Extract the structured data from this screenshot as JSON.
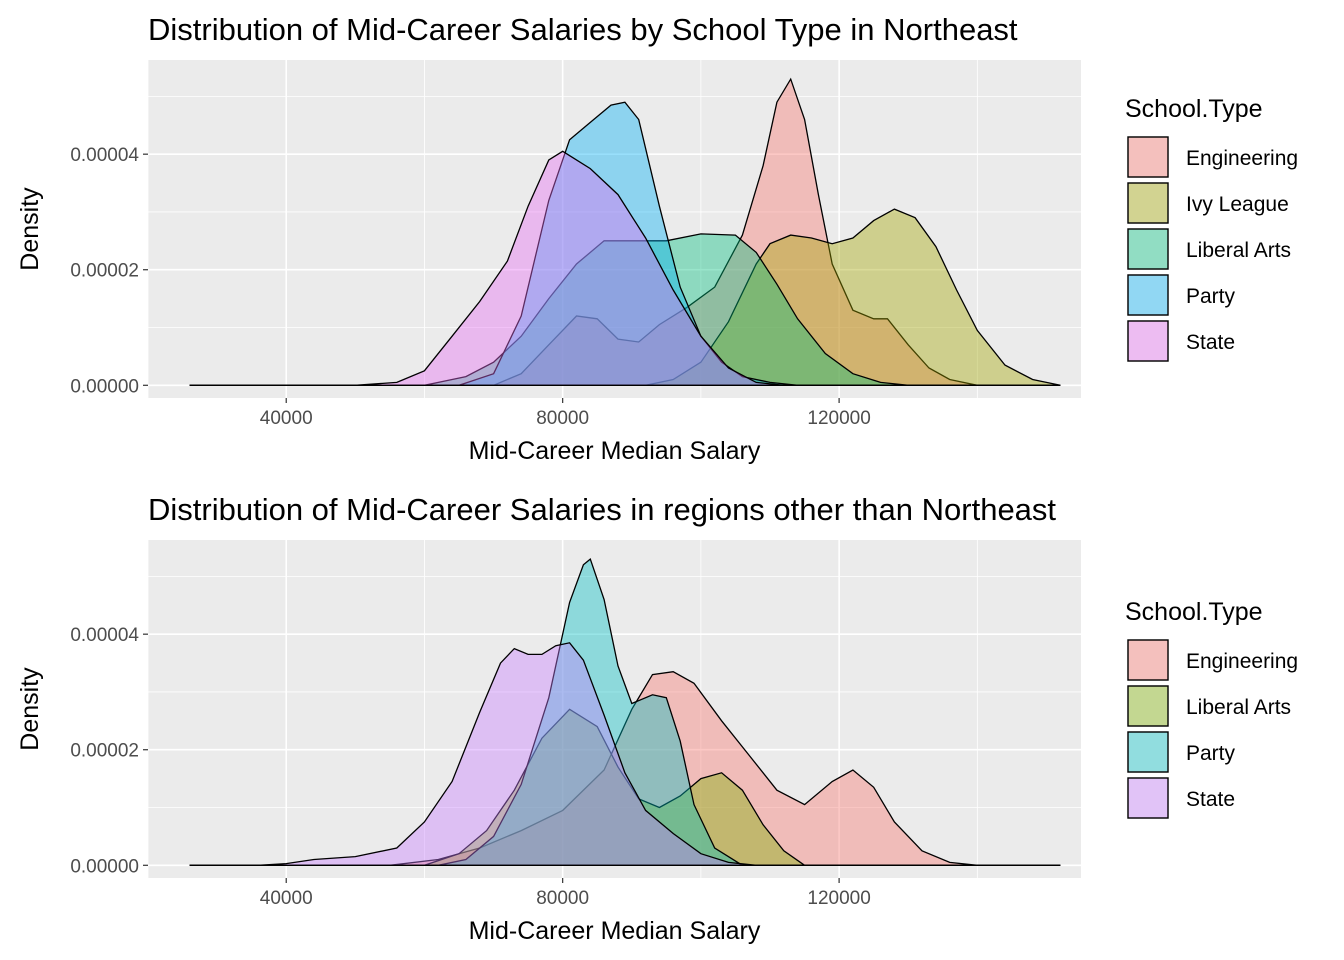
{
  "chart_data": [
    {
      "type": "area",
      "subtype": "density",
      "title": "Distribution of Mid-Career Salaries by School Type in Northeast",
      "xlabel": "Mid-Career Median Salary",
      "ylabel": "Density",
      "xlim": [
        20000,
        155000
      ],
      "ylim": [
        -2.2e-06,
        5.63e-05
      ],
      "x_ticks": [
        40000,
        80000,
        120000
      ],
      "x_tick_labels": [
        "40000",
        "80000",
        "120000"
      ],
      "y_ticks": [
        0,
        2e-05,
        4e-05
      ],
      "y_tick_labels": [
        "0.00000",
        "0.00002",
        "0.00004"
      ],
      "grid": true,
      "legend_title": "School.Type",
      "legend_position": "right",
      "series": [
        {
          "name": "Engineering",
          "color": "#F8766D",
          "x": [
            26000,
            70000,
            74000,
            78000,
            82000,
            85000,
            88000,
            91000,
            94000,
            98000,
            102000,
            106000,
            109000,
            111000,
            113000,
            115000,
            117000,
            119000,
            122000,
            125000,
            127000,
            130000,
            133000,
            136000,
            140000,
            152000
          ],
          "y": [
            0,
            0,
            2e-06,
            7e-06,
            1.2e-05,
            1.15e-05,
            8e-06,
            7.5e-06,
            1.05e-05,
            1.35e-05,
            1.7e-05,
            2.6e-05,
            3.8e-05,
            4.9e-05,
            5.3e-05,
            4.6e-05,
            3.3e-05,
            2.1e-05,
            1.3e-05,
            1.15e-05,
            1.15e-05,
            7e-06,
            3e-06,
            1e-06,
            0,
            0
          ]
        },
        {
          "name": "Ivy League",
          "color": "#A3A500",
          "x": [
            26000,
            92000,
            96000,
            100000,
            104000,
            108000,
            110000,
            113000,
            116000,
            119000,
            122000,
            125000,
            128000,
            131000,
            134000,
            137000,
            140000,
            144000,
            148000,
            152000
          ],
          "y": [
            0,
            0,
            1e-06,
            4e-06,
            1.1e-05,
            2.1e-05,
            2.45e-05,
            2.6e-05,
            2.55e-05,
            2.45e-05,
            2.55e-05,
            2.85e-05,
            3.05e-05,
            2.9e-05,
            2.4e-05,
            1.65e-05,
            9.5e-06,
            3.5e-06,
            1e-06,
            0
          ]
        },
        {
          "name": "Liberal Arts",
          "color": "#00BF7D",
          "x": [
            26000,
            60000,
            66000,
            70000,
            74000,
            78000,
            82000,
            86000,
            90000,
            95000,
            100000,
            105000,
            108000,
            111000,
            114000,
            118000,
            122000,
            126000,
            130000,
            152000
          ],
          "y": [
            0,
            0,
            1.5e-06,
            4e-06,
            8.5e-06,
            1.5e-05,
            2.1e-05,
            2.5e-05,
            2.5e-05,
            2.5e-05,
            2.62e-05,
            2.6e-05,
            2.3e-05,
            1.75e-05,
            1.15e-05,
            5.5e-06,
            2e-06,
            5e-07,
            0,
            0
          ]
        },
        {
          "name": "Party",
          "color": "#00B0F6",
          "x": [
            26000,
            65000,
            70000,
            74000,
            78000,
            81000,
            84000,
            87000,
            89000,
            91000,
            94000,
            97000,
            100000,
            103000,
            106000,
            110000,
            114000,
            152000
          ],
          "y": [
            0,
            0,
            2e-06,
            1.2e-05,
            3.2e-05,
            4.25e-05,
            4.55e-05,
            4.85e-05,
            4.9e-05,
            4.6e-05,
            3.1e-05,
            1.7e-05,
            8.5e-06,
            4e-06,
            1.5e-06,
            5e-07,
            0,
            0
          ]
        },
        {
          "name": "State",
          "color": "#E76BF3",
          "x": [
            26000,
            50000,
            56000,
            60000,
            64000,
            68000,
            72000,
            75000,
            78000,
            80000,
            84000,
            88000,
            92000,
            96000,
            100000,
            104000,
            108000,
            112000,
            152000
          ],
          "y": [
            0,
            0,
            5e-07,
            2.5e-06,
            8.5e-06,
            1.45e-05,
            2.15e-05,
            3.1e-05,
            3.9e-05,
            4.05e-05,
            3.75e-05,
            3.3e-05,
            2.55e-05,
            1.65e-05,
            8.5e-06,
            3e-06,
            5e-07,
            0,
            0
          ]
        }
      ]
    },
    {
      "type": "area",
      "subtype": "density",
      "title": "Distribution of Mid-Career Salaries in regions other than Northeast",
      "xlabel": "Mid-Career Median Salary",
      "ylabel": "Density",
      "xlim": [
        20000,
        155000
      ],
      "ylim": [
        -2.2e-06,
        5.63e-05
      ],
      "x_ticks": [
        40000,
        80000,
        120000
      ],
      "x_tick_labels": [
        "40000",
        "80000",
        "120000"
      ],
      "y_ticks": [
        0,
        2e-05,
        4e-05
      ],
      "y_tick_labels": [
        "0.00000",
        "0.00002",
        "0.00004"
      ],
      "grid": true,
      "legend_title": "School.Type",
      "legend_position": "right",
      "series": [
        {
          "name": "Engineering",
          "color": "#F8766D",
          "x": [
            26000,
            55000,
            62000,
            68000,
            74000,
            80000,
            86000,
            90000,
            93000,
            96000,
            99000,
            103000,
            107000,
            111000,
            115000,
            119000,
            122000,
            125000,
            128000,
            132000,
            136000,
            140000,
            146000,
            152000
          ],
          "y": [
            0,
            0,
            1e-06,
            3e-06,
            6e-06,
            9.5e-06,
            1.65e-05,
            2.7e-05,
            3.3e-05,
            3.35e-05,
            3.15e-05,
            2.5e-05,
            1.9e-05,
            1.3e-05,
            1.05e-05,
            1.45e-05,
            1.65e-05,
            1.35e-05,
            7.5e-06,
            2.5e-06,
            5e-07,
            0,
            0,
            0
          ]
        },
        {
          "name": "Liberal Arts",
          "color": "#7CAE00",
          "x": [
            26000,
            60000,
            65000,
            69000,
            73000,
            77000,
            81000,
            85000,
            88000,
            91000,
            94000,
            97000,
            100000,
            103000,
            106000,
            109000,
            112000,
            115000,
            152000
          ],
          "y": [
            0,
            0,
            2e-06,
            6e-06,
            1.3e-05,
            2.2e-05,
            2.7e-05,
            2.4e-05,
            1.7e-05,
            1.15e-05,
            1e-05,
            1.2e-05,
            1.5e-05,
            1.6e-05,
            1.3e-05,
            7e-06,
            2.5e-06,
            0,
            0
          ]
        },
        {
          "name": "Party",
          "color": "#00BFC4",
          "x": [
            26000,
            62000,
            66000,
            70000,
            74000,
            78000,
            81000,
            83000,
            84000,
            86000,
            88000,
            90000,
            93000,
            95000,
            97000,
            99000,
            102000,
            106000,
            152000
          ],
          "y": [
            0,
            0,
            1e-06,
            5e-06,
            1.4e-05,
            2.9e-05,
            4.55e-05,
            5.2e-05,
            5.3e-05,
            4.6e-05,
            3.45e-05,
            2.8e-05,
            2.95e-05,
            2.9e-05,
            2.15e-05,
            1.05e-05,
            3e-06,
            0,
            0
          ]
        },
        {
          "name": "State",
          "color": "#C77CFF",
          "x": [
            26000,
            36000,
            40000,
            44000,
            50000,
            56000,
            60000,
            64000,
            68000,
            71000,
            73000,
            75000,
            77000,
            79000,
            81000,
            83000,
            86000,
            89000,
            92000,
            96000,
            100000,
            104000,
            108000,
            112000,
            152000
          ],
          "y": [
            0,
            0,
            3e-07,
            1e-06,
            1.5e-06,
            3e-06,
            7.5e-06,
            1.45e-05,
            2.65e-05,
            3.5e-05,
            3.75e-05,
            3.65e-05,
            3.65e-05,
            3.8e-05,
            3.85e-05,
            3.55e-05,
            2.6e-05,
            1.6e-05,
            9.5e-06,
            5.5e-06,
            2e-06,
            5e-07,
            0,
            0,
            0
          ]
        }
      ]
    }
  ]
}
